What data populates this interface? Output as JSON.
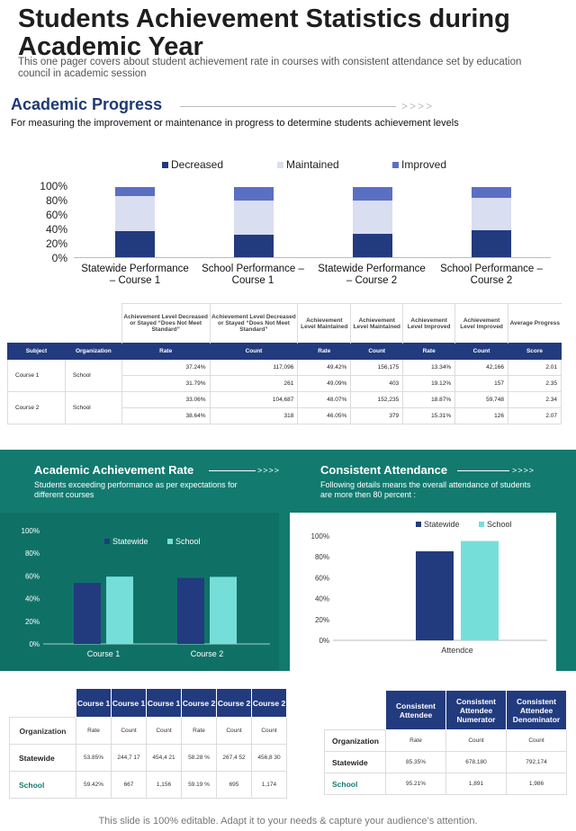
{
  "title": "Students Achievement Statistics during Academic Year",
  "subtitle": "This one pager covers about student achievement  rate in courses with consistent attendance set by education council in academic session",
  "academic_progress": {
    "heading": "Academic Progress",
    "arrows": ">>>>",
    "description": "For measuring the improvement or maintenance in progress to determine students achievement levels"
  },
  "colors": {
    "navy": "#223b7e",
    "maintained": "#d9def0",
    "improved": "#5b6fc2",
    "teal_band": "#137a70",
    "teal_bar": "#76ded8"
  },
  "chart_data": [
    {
      "type": "bar",
      "stacked": true,
      "categories": [
        "Statewide Performance – Course 1",
        "School Performance – Course 1",
        "Statewide Performance – Course 2",
        "School Performance – Course 2"
      ],
      "series": [
        {
          "name": "Decreased",
          "values": [
            37.24,
            31.79,
            33.06,
            38.64
          ]
        },
        {
          "name": "Maintained",
          "values": [
            49.42,
            49.09,
            48.07,
            46.05
          ]
        },
        {
          "name": "Improved",
          "values": [
            13.34,
            19.12,
            18.87,
            15.31
          ]
        }
      ],
      "ylim": [
        0,
        100
      ],
      "yticks": [
        "100%",
        "80%",
        "60%",
        "40%",
        "20%",
        "0%"
      ],
      "legend": "top"
    },
    {
      "type": "bar",
      "title": "Academic Achievement Rate",
      "categories": [
        "Course 1",
        "Course 2"
      ],
      "series": [
        {
          "name": "Statewide",
          "values": [
            53.85,
            58.28
          ]
        },
        {
          "name": "School",
          "values": [
            59.42,
            59.19
          ]
        }
      ],
      "ylim": [
        0,
        100
      ],
      "yticks": [
        "100%",
        "80%",
        "60%",
        "40%",
        "20%",
        "0%"
      ],
      "legend": "top"
    },
    {
      "type": "bar",
      "title": "Consistent Attendance",
      "categories": [
        "Attendce"
      ],
      "series": [
        {
          "name": "Statewide",
          "values": [
            85.35
          ]
        },
        {
          "name": "School",
          "values": [
            95.21
          ]
        }
      ],
      "ylim": [
        0,
        100
      ],
      "yticks": [
        "100%",
        "80%",
        "60%",
        "40%",
        "20%",
        "0%"
      ],
      "legend": "top"
    }
  ],
  "progress_table": {
    "group_headers": [
      "Achievement  Level Decreased  or Stayed “Does Not Meet Standard”",
      "Achievement  Level Decreased  or Stayed “Does Not Meet Standard”",
      "Achievement Level Maintained",
      "Achievement Level Maintained",
      "Achievement Level Improved",
      "Achievement Level Improved",
      "Average Progress"
    ],
    "columns": [
      "Subject",
      "Organization",
      "Rate",
      "Count",
      "Rate",
      "Count",
      "Rate",
      "Count",
      "Score"
    ],
    "rows": [
      {
        "subject": "Course 1",
        "organization": "School",
        "cells": [
          "37.24%",
          "117,096",
          "49.42%",
          "156,175",
          "13.34%",
          "42,166",
          "2.01"
        ]
      },
      {
        "subject": "",
        "organization": "",
        "cells": [
          "31.79%",
          "261",
          "49.09%",
          "403",
          "19.12%",
          "157",
          "2.35"
        ]
      },
      {
        "subject": "Course 2",
        "organization": "School",
        "cells": [
          "33.06%",
          "104,687",
          "48.07%",
          "152,235",
          "18.87%",
          "59,748",
          "2.34"
        ]
      },
      {
        "subject": "",
        "organization": "",
        "cells": [
          "38.64%",
          "318",
          "46.05%",
          "379",
          "15.31%",
          "126",
          "2.07"
        ]
      }
    ]
  },
  "achievement_rate": {
    "heading": "Academic Achievement Rate",
    "arrows": ">>>>",
    "description": "Students exceeding performance as per expectations for different courses"
  },
  "consistent_attendance": {
    "heading": "Consistent Attendance",
    "arrows": ">>>>",
    "description": "Following details means the overall attendance of students are more then 80 percent :"
  },
  "rate_table": {
    "headers": [
      "Course 1",
      "Course 1",
      "Course 1",
      "Course 2",
      "Course 2",
      "Course 2"
    ],
    "org_label": "Organization",
    "subheaders": [
      "Rate",
      "Count",
      "Count",
      "Rate",
      "Count",
      "Count"
    ],
    "rows": [
      {
        "org": "Statewide",
        "cells": [
          "53.85%",
          "244,7 17",
          "454,4 21",
          "58.28 %",
          "267,4 52",
          "456,8 30"
        ]
      },
      {
        "org": "School",
        "cells": [
          "59.42%",
          "667",
          "1,156",
          "59.19 %",
          "695",
          "1,174"
        ]
      }
    ]
  },
  "attendance_table": {
    "headers": [
      "Consistent Attendee",
      "Consistent Attendee Numerator",
      "Consistent Attendee Denominator"
    ],
    "org_label": "Organization",
    "subheaders": [
      "Rate",
      "Count",
      "Count"
    ],
    "rows": [
      {
        "org": "Statewide",
        "cells": [
          "85.35%",
          "678,180",
          "792,174"
        ]
      },
      {
        "org": "School",
        "cells": [
          "95.21%",
          "1,891",
          "1,986"
        ]
      }
    ]
  },
  "footer": "This slide is 100% editable. Adapt it to your needs & capture your audience’s attention."
}
